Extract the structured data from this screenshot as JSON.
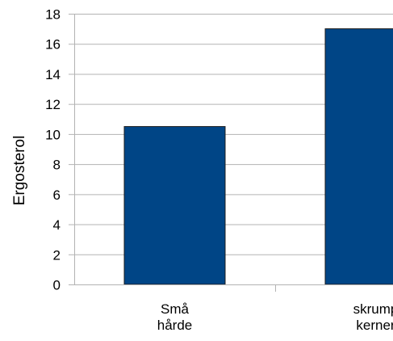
{
  "chart_data": {
    "type": "bar",
    "categories": [
      [
        "Små",
        "hårde"
      ],
      [
        "skrump",
        "kerner"
      ]
    ],
    "values": [
      10.5,
      17
    ],
    "ylabel": "Ergosterol",
    "xlabel": "",
    "ylim": [
      0,
      18
    ],
    "yticks": [
      0,
      2,
      4,
      6,
      8,
      10,
      12,
      14,
      16,
      18
    ],
    "grid": true,
    "legend": "none",
    "colors": {
      "bar_fill": "#004586",
      "bar_stroke": "#1c1c1c",
      "grid": "#b3b3b3",
      "axis": "#b3b3b3",
      "text": "#000000"
    }
  }
}
